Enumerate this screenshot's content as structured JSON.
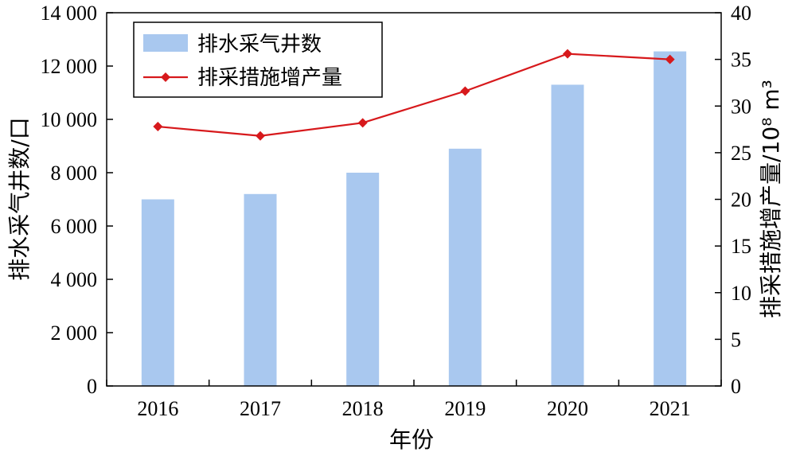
{
  "chart_data": {
    "type": "bar+line",
    "categories": [
      "2016",
      "2017",
      "2018",
      "2019",
      "2020",
      "2021"
    ],
    "xlabel": "年份",
    "series": [
      {
        "name": "排水采气井数",
        "type": "bar",
        "axis": "left",
        "color": "#a9c8ef",
        "values": [
          7000,
          7200,
          8000,
          8900,
          11300,
          12550
        ]
      },
      {
        "name": "排采措施增产量",
        "type": "line",
        "axis": "right",
        "color": "#d7191c",
        "marker": "diamond",
        "values": [
          27.8,
          26.8,
          28.2,
          31.6,
          35.6,
          35.0
        ]
      }
    ],
    "y_left": {
      "label": "排水采气井数/口",
      "range": [
        0,
        14000
      ],
      "ticks": [
        0,
        2000,
        4000,
        6000,
        8000,
        10000,
        12000,
        14000
      ],
      "tick_labels": [
        "0",
        "2 000",
        "4 000",
        "6 000",
        "8 000",
        "10 000",
        "12 000",
        "14 000"
      ]
    },
    "y_right": {
      "label": "排采措施增产量/10⁸ m³",
      "range": [
        0,
        40
      ],
      "ticks": [
        0,
        5,
        10,
        15,
        20,
        25,
        30,
        35,
        40
      ],
      "tick_labels": [
        "0",
        "5",
        "10",
        "15",
        "20",
        "25",
        "30",
        "35",
        "40"
      ]
    },
    "grid": false,
    "legend": {
      "placement": "top-left"
    }
  }
}
